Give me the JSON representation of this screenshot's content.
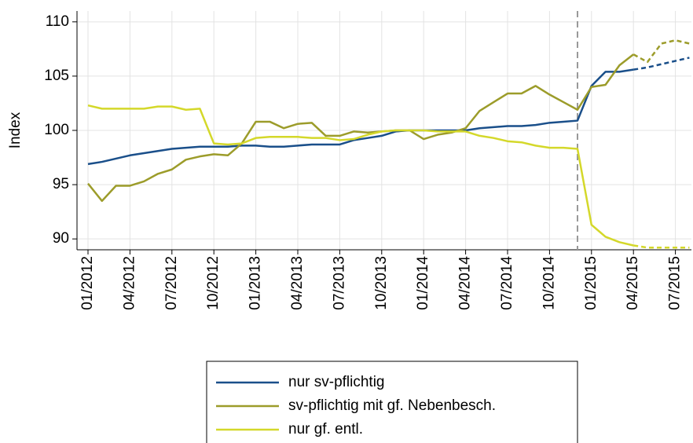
{
  "chart_data": {
    "type": "line",
    "y_label": "Index",
    "categories": [
      "01/2012",
      null,
      null,
      "04/2012",
      null,
      null,
      "07/2012",
      null,
      null,
      "10/2012",
      null,
      null,
      "01/2013",
      null,
      null,
      "04/2013",
      null,
      null,
      "07/2013",
      null,
      null,
      "10/2013",
      null,
      null,
      "01/2014",
      null,
      null,
      "04/2014",
      null,
      null,
      "07/2014",
      null,
      null,
      "10/2014",
      null,
      null,
      "01/2015",
      null,
      null,
      "04/2015",
      null,
      null,
      "07/2015",
      null
    ],
    "ylim": [
      89,
      111
    ],
    "yticks": [
      90,
      95,
      100,
      105,
      110
    ],
    "grid": true,
    "vline_index": 35,
    "dashed_from_index": 39,
    "series": [
      {
        "name": "nur sv-pflichtig",
        "color": "#1a4f8a",
        "values": [
          96.9,
          97.1,
          97.4,
          97.7,
          97.9,
          98.1,
          98.3,
          98.4,
          98.5,
          98.5,
          98.5,
          98.6,
          98.6,
          98.5,
          98.5,
          98.6,
          98.7,
          98.7,
          98.7,
          99.1,
          99.3,
          99.5,
          99.9,
          100,
          100,
          100,
          100,
          100,
          100.2,
          100.3,
          100.4,
          100.4,
          100.5,
          100.7,
          100.8,
          100.9,
          104.1,
          105.4,
          105.4,
          105.6,
          105.8,
          106.1,
          106.4,
          106.7
        ]
      },
      {
        "name": "sv-pflichtig mit gf. Nebenbesch.",
        "color": "#9c9c2a",
        "values": [
          95.1,
          93.5,
          94.9,
          94.9,
          95.3,
          96.0,
          96.4,
          97.3,
          97.6,
          97.8,
          97.7,
          98.8,
          100.8,
          100.8,
          100.2,
          100.6,
          100.7,
          99.5,
          99.5,
          99.9,
          99.8,
          99.9,
          100,
          100,
          99.2,
          99.6,
          99.8,
          100.2,
          101.8,
          102.6,
          103.4,
          103.4,
          104.1,
          103.3,
          102.6,
          101.9,
          104.0,
          104.2,
          106.0,
          107.0,
          106.3,
          108.0,
          108.3,
          108.0
        ]
      },
      {
        "name": "nur gf. entl.",
        "color": "#d4d82a",
        "values": [
          102.3,
          102.0,
          102.0,
          102.0,
          102.0,
          102.2,
          102.2,
          101.9,
          102.0,
          98.8,
          98.7,
          98.8,
          99.3,
          99.4,
          99.4,
          99.4,
          99.3,
          99.3,
          99.1,
          99.2,
          99.6,
          99.9,
          100,
          100,
          100,
          99.9,
          99.9,
          99.9,
          99.5,
          99.3,
          99.0,
          98.9,
          98.6,
          98.4,
          98.4,
          98.3,
          91.3,
          90.2,
          89.7,
          89.4,
          89.2,
          89.2,
          89.2,
          89.2
        ]
      }
    ]
  }
}
